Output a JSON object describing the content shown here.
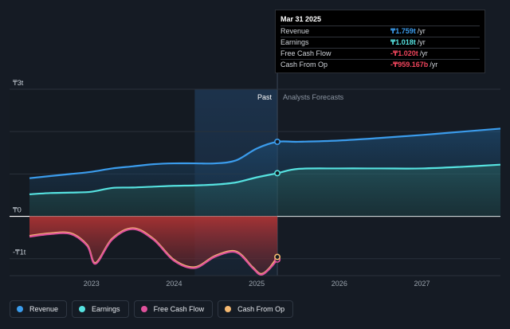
{
  "chart_data": {
    "type": "area",
    "currency_symbol": "₸",
    "y_ticks": [
      {
        "value": 3,
        "label": "₸3t"
      },
      {
        "value": 0,
        "label": "₸0"
      },
      {
        "value": -1,
        "label": "-₸1t"
      }
    ],
    "ylim": [
      -1.4,
      3.0
    ],
    "xlim": [
      2022.25,
      2027.95
    ],
    "x_ticks": [
      "2023",
      "2024",
      "2025",
      "2026",
      "2027"
    ],
    "x_tick_values": [
      2023,
      2024,
      2025,
      2026,
      2027
    ],
    "past_label": "Past",
    "forecast_label": "Analysts Forecasts",
    "past_end": 2025.25,
    "highlight_start": 2024.25,
    "series": [
      {
        "name": "Revenue",
        "color": "#3b9cec",
        "x": [
          2022.25,
          2022.5,
          2022.75,
          2023.0,
          2023.25,
          2023.5,
          2023.75,
          2024.0,
          2024.25,
          2024.5,
          2024.75,
          2025.0,
          2025.25,
          2025.5,
          2026.0,
          2026.5,
          2027.0,
          2027.5,
          2027.95
        ],
        "y": [
          0.9,
          0.95,
          1.0,
          1.05,
          1.13,
          1.18,
          1.23,
          1.25,
          1.25,
          1.25,
          1.32,
          1.6,
          1.759,
          1.76,
          1.79,
          1.85,
          1.92,
          2.0,
          2.07
        ]
      },
      {
        "name": "Earnings",
        "color": "#56e2e0",
        "x": [
          2022.25,
          2022.5,
          2022.75,
          2023.0,
          2023.25,
          2023.5,
          2023.75,
          2024.0,
          2024.25,
          2024.5,
          2024.75,
          2025.0,
          2025.25,
          2025.5,
          2026.0,
          2026.5,
          2027.0,
          2027.5,
          2027.95
        ],
        "y": [
          0.52,
          0.55,
          0.56,
          0.58,
          0.67,
          0.68,
          0.7,
          0.72,
          0.73,
          0.75,
          0.8,
          0.92,
          1.018,
          1.12,
          1.13,
          1.13,
          1.13,
          1.17,
          1.22
        ]
      },
      {
        "name": "Free Cash Flow",
        "color": "#e0529c",
        "x": [
          2022.25,
          2022.5,
          2022.75,
          2022.95,
          2023.05,
          2023.25,
          2023.5,
          2023.75,
          2024.0,
          2024.25,
          2024.5,
          2024.75,
          2024.95,
          2025.05,
          2025.15,
          2025.25
        ],
        "y": [
          -0.48,
          -0.42,
          -0.42,
          -0.7,
          -1.12,
          -0.55,
          -0.3,
          -0.55,
          -1.05,
          -1.22,
          -0.95,
          -0.85,
          -1.22,
          -1.38,
          -1.25,
          -1.02
        ]
      },
      {
        "name": "Cash From Op",
        "color": "#f5b971",
        "x": [
          2022.25,
          2022.5,
          2022.75,
          2022.95,
          2023.05,
          2023.25,
          2023.5,
          2023.75,
          2024.0,
          2024.25,
          2024.5,
          2024.75,
          2024.95,
          2025.05,
          2025.15,
          2025.25
        ],
        "y": [
          -0.46,
          -0.4,
          -0.4,
          -0.68,
          -1.1,
          -0.53,
          -0.28,
          -0.53,
          -1.03,
          -1.2,
          -0.93,
          -0.83,
          -1.2,
          -1.36,
          -1.23,
          -0.959
        ]
      }
    ]
  },
  "tooltip": {
    "date": "Mar 31 2025",
    "rows": [
      {
        "label": "Revenue",
        "value": "₸1.759t",
        "unit": "/yr",
        "color": "#3b9cec"
      },
      {
        "label": "Earnings",
        "value": "₸1.018t",
        "unit": "/yr",
        "color": "#56e2e0"
      },
      {
        "label": "Free Cash Flow",
        "value": "-₸1.020t",
        "unit": "/yr",
        "color": "#f0455c"
      },
      {
        "label": "Cash From Op",
        "value": "-₸959.167b",
        "unit": "/yr",
        "color": "#f0455c"
      }
    ]
  },
  "legend": [
    {
      "label": "Revenue",
      "color": "#3b9cec"
    },
    {
      "label": "Earnings",
      "color": "#56e2e0"
    },
    {
      "label": "Free Cash Flow",
      "color": "#e0529c"
    },
    {
      "label": "Cash From Op",
      "color": "#f5b971"
    }
  ]
}
